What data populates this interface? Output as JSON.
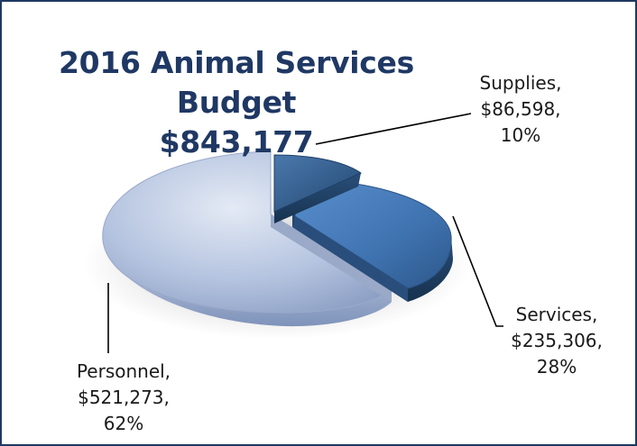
{
  "chart_data": {
    "type": "pie",
    "title": "2016 Animal Services Budget",
    "subtitle": "$843,177",
    "slices": [
      {
        "category": "Supplies",
        "amount": "$86,598",
        "percent": "10%",
        "value": 86598,
        "color": "#2e5b8c"
      },
      {
        "category": "Services",
        "amount": "$235,306",
        "percent": "28%",
        "value": 235306,
        "color": "#3f73b0"
      },
      {
        "category": "Personnel",
        "amount": "$521,273",
        "percent": "62%",
        "value": 521273,
        "color": "#b4c3df"
      }
    ],
    "legend": "none",
    "style": "3d-exploded"
  }
}
